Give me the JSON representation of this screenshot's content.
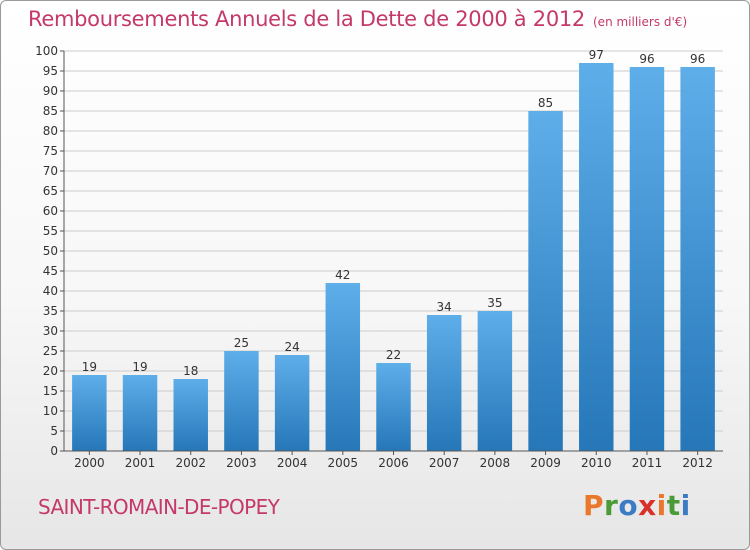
{
  "header": {
    "title": "Remboursements Annuels de la Dette de 2000 à 2012",
    "unit": "(en milliers d'€)"
  },
  "footer": {
    "commune": "SAINT-ROMAIN-DE-POPEY",
    "logo_letters": [
      "P",
      "r",
      "o",
      "x",
      "i",
      "t",
      "i"
    ],
    "logo_colors": [
      "#e9782d",
      "#4a9a38",
      "#3c7cc4",
      "#d8332b",
      "#e9782d",
      "#4a9a38",
      "#3c7cc4"
    ]
  },
  "colors": {
    "title": "#c4386a",
    "bar_top": "#5eaeea",
    "bar_bottom": "#2677b8",
    "axis": "#555555",
    "grid": "#cccccc"
  },
  "chart_data": {
    "type": "bar",
    "title": "Remboursements Annuels de la Dette de 2000 à 2012",
    "unit": "(en milliers d'€)",
    "categories": [
      "2000",
      "2001",
      "2002",
      "2003",
      "2004",
      "2005",
      "2006",
      "2007",
      "2008",
      "2009",
      "2010",
      "2011",
      "2012"
    ],
    "values": [
      19,
      19,
      18,
      25,
      24,
      42,
      22,
      34,
      35,
      85,
      97,
      96,
      96
    ],
    "ylim": [
      0,
      100
    ],
    "yticks": [
      0,
      5,
      10,
      15,
      20,
      25,
      30,
      35,
      40,
      45,
      50,
      55,
      60,
      65,
      70,
      75,
      80,
      85,
      90,
      95,
      100
    ],
    "grid": true,
    "data_labels": true
  }
}
